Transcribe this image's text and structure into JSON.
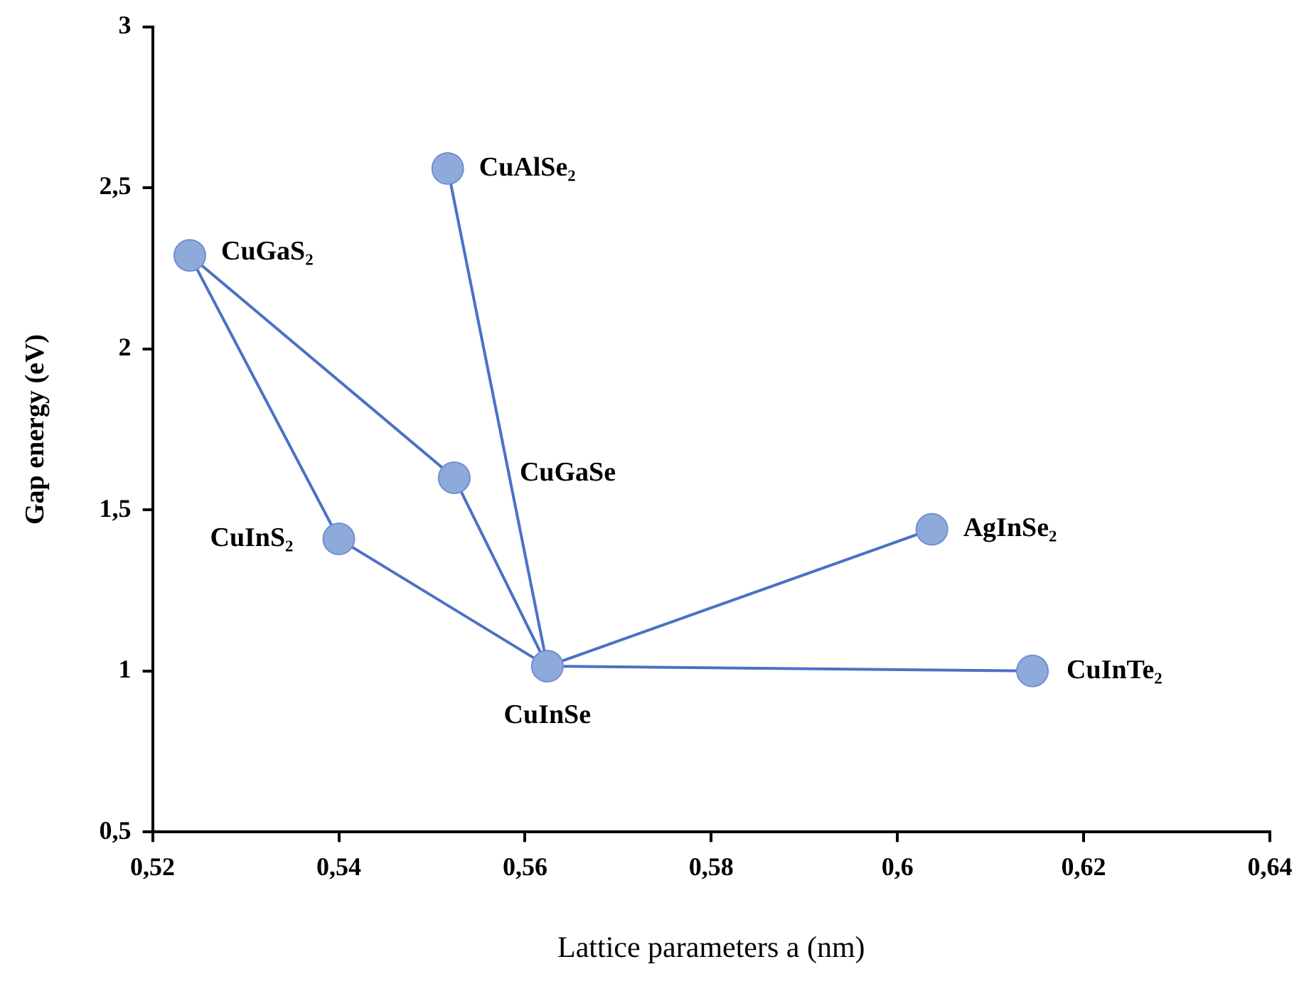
{
  "chart_data": {
    "type": "scatter",
    "xlabel": "Lattice parameters a (nm)",
    "ylabel": "Gap energy (eV)",
    "xlim": [
      0.52,
      0.64
    ],
    "xticks": [
      {
        "value": 0.52,
        "label": "0,52"
      },
      {
        "value": 0.54,
        "label": "0,54"
      },
      {
        "value": 0.56,
        "label": "0,56"
      },
      {
        "value": 0.58,
        "label": "0,58"
      },
      {
        "value": 0.6,
        "label": "0,6"
      },
      {
        "value": 0.62,
        "label": "0,62"
      },
      {
        "value": 0.64,
        "label": "0,64"
      }
    ],
    "ylim": [
      0.5,
      3
    ],
    "yticks": [
      {
        "value": 0.5,
        "label": "0,5"
      },
      1,
      {
        "value": 1.5,
        "label": "1,5"
      },
      2,
      {
        "value": 2.5,
        "label": "2,5"
      },
      3
    ],
    "grid": false,
    "legend": false,
    "series": [
      {
        "type": "line",
        "marker": "none",
        "color": "#4a72c4",
        "x": [
          0.524,
          0.54,
          0.5624
        ],
        "values": [
          2.29,
          1.41,
          1.015
        ]
      },
      {
        "type": "line",
        "marker": "none",
        "color": "#4a72c4",
        "x": [
          0.524,
          0.5524,
          0.5624
        ],
        "values": [
          2.29,
          1.6,
          1.015
        ]
      },
      {
        "type": "line",
        "marker": "none",
        "color": "#4a72c4",
        "x": [
          0.5517,
          0.5624
        ],
        "values": [
          2.56,
          1.015
        ]
      },
      {
        "type": "line",
        "marker": "none",
        "color": "#4a72c4",
        "x": [
          0.5624,
          0.6037
        ],
        "values": [
          1.015,
          1.44
        ]
      },
      {
        "type": "line",
        "marker": "none",
        "color": "#4a72c4",
        "x": [
          0.5624,
          0.6145
        ],
        "values": [
          1.015,
          1.0
        ]
      },
      {
        "marker": "circle",
        "color": "#8eaadb",
        "x": [
          0.524,
          0.54,
          0.5524,
          0.5517,
          0.5624,
          0.6037,
          0.6145
        ],
        "values": [
          2.29,
          1.41,
          1.6,
          2.56,
          1.015,
          1.44,
          1.0
        ]
      }
    ],
    "annotations": [
      {
        "text": "CuGaS₂",
        "x": 0.524,
        "y": 2.29
      },
      {
        "text": "CuInS₂",
        "x": 0.54,
        "y": 1.41
      },
      {
        "text": "CuGaSe",
        "x": 0.5524,
        "y": 1.6
      },
      {
        "text": "CuAlSe₂",
        "x": 0.5517,
        "y": 2.56
      },
      {
        "text": "CuInSe",
        "x": 0.5624,
        "y": 1.015
      },
      {
        "text": "AgInSe₂",
        "x": 0.6037,
        "y": 1.44
      },
      {
        "text": "CuInTe₂",
        "x": 0.6145,
        "y": 1.0
      }
    ]
  }
}
